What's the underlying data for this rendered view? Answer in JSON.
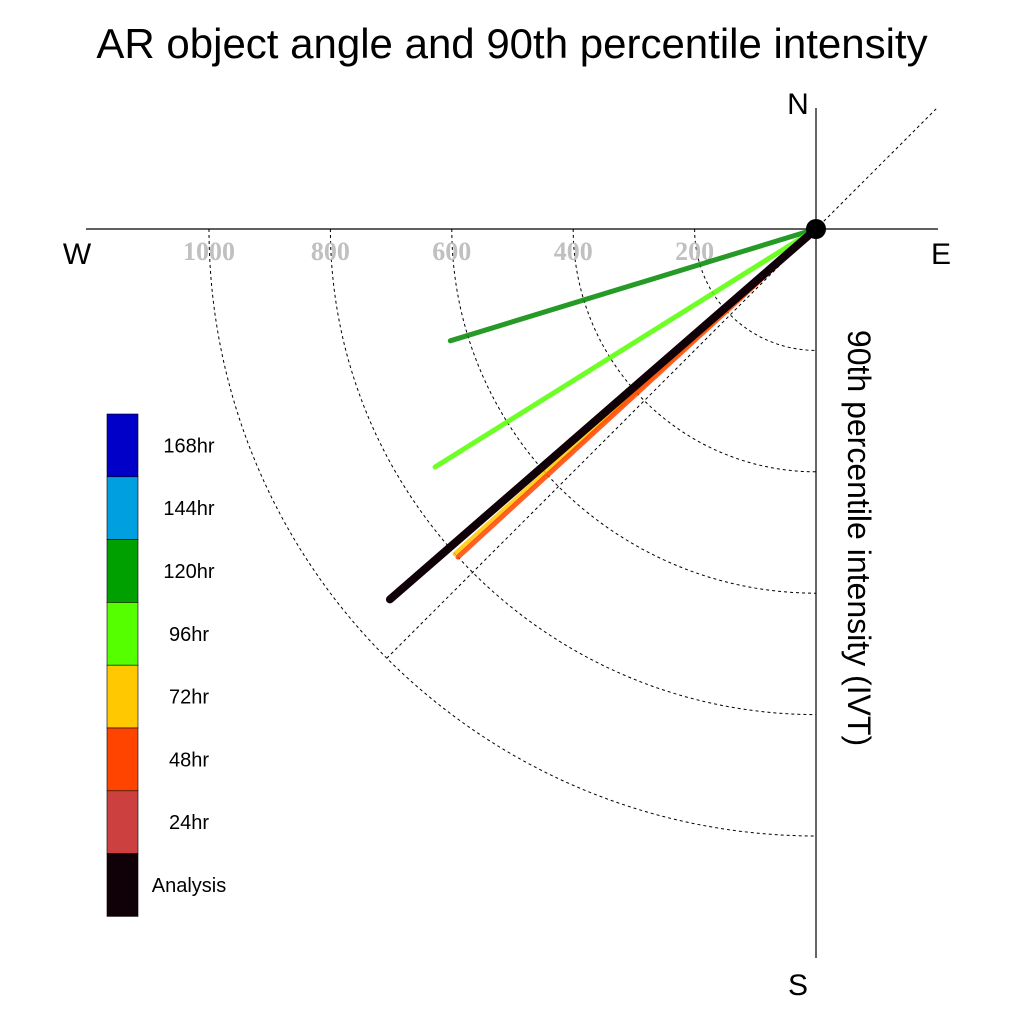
{
  "chart_data": {
    "type": "polar-vector",
    "title": "AR object angle and 90th percentile intensity",
    "radial_label": "90th percentile intensity (IVT)",
    "compass": {
      "north": "N",
      "south": "S",
      "east": "E",
      "west": "W"
    },
    "radial_ticks": [
      200,
      400,
      600,
      800,
      1000
    ],
    "radial_tick_labels": [
      "200",
      "400",
      "600",
      "800",
      "1000"
    ],
    "radial_range": [
      0,
      1000
    ],
    "grid": true,
    "legend_position": "left",
    "legend": [
      {
        "label": "168hr",
        "color": "#0000c8"
      },
      {
        "label": "144hr",
        "color": "#00a0e0"
      },
      {
        "label": "120hr",
        "color": "#00a000"
      },
      {
        "label": "96hr",
        "color": "#55ff00"
      },
      {
        "label": "72hr",
        "color": "#ffc800"
      },
      {
        "label": "48hr",
        "color": "#ff4400"
      },
      {
        "label": "24hr",
        "color": "#cc4040"
      },
      {
        "label": "Analysis",
        "color": "#100008"
      }
    ],
    "series": [
      {
        "name": "120hr",
        "direction_deg_from_west": 17,
        "intensity": 630,
        "color": "#008800"
      },
      {
        "name": "96hr",
        "direction_deg_from_west": 32,
        "intensity": 740,
        "color": "#55ff00"
      },
      {
        "name": "24hr",
        "direction_deg_from_west": 41,
        "intensity": 840,
        "color": "#cc4040"
      },
      {
        "name": "72hr",
        "direction_deg_from_west": 42,
        "intensity": 800,
        "color": "#ffc800"
      },
      {
        "name": "48hr",
        "direction_deg_from_west": 42.5,
        "intensity": 800,
        "color": "#ff4400"
      },
      {
        "name": "Analysis",
        "direction_deg_from_west": 41,
        "intensity": 930,
        "color": "#100008"
      }
    ]
  }
}
